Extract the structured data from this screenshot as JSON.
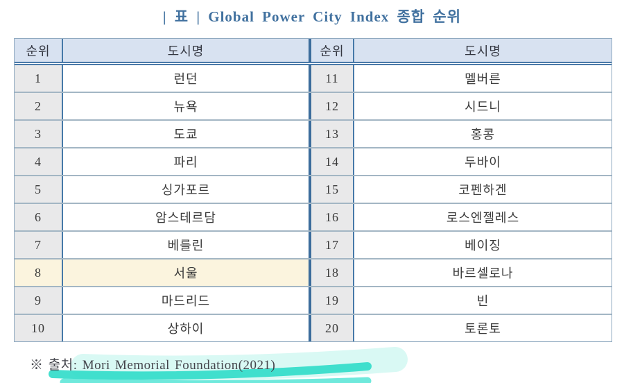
{
  "title": "| 표 | Global Power City Index 종합 순위",
  "table": {
    "header": {
      "rank": "순위",
      "city": "도시명"
    },
    "highlight_rank": "8",
    "left_rows": [
      {
        "rank": "1",
        "city": "런던"
      },
      {
        "rank": "2",
        "city": "뉴욕"
      },
      {
        "rank": "3",
        "city": "도쿄"
      },
      {
        "rank": "4",
        "city": "파리"
      },
      {
        "rank": "5",
        "city": "싱가포르"
      },
      {
        "rank": "6",
        "city": "암스테르담"
      },
      {
        "rank": "7",
        "city": "베를린"
      },
      {
        "rank": "8",
        "city": "서울"
      },
      {
        "rank": "9",
        "city": "마드리드"
      },
      {
        "rank": "10",
        "city": "상하이"
      }
    ],
    "right_rows": [
      {
        "rank": "11",
        "city": "멜버른"
      },
      {
        "rank": "12",
        "city": "시드니"
      },
      {
        "rank": "13",
        "city": "홍콩"
      },
      {
        "rank": "14",
        "city": "두바이"
      },
      {
        "rank": "15",
        "city": "코펜하겐"
      },
      {
        "rank": "16",
        "city": "로스엔젤레스"
      },
      {
        "rank": "17",
        "city": "베이징"
      },
      {
        "rank": "18",
        "city": "바르셀로나"
      },
      {
        "rank": "19",
        "city": "빈"
      },
      {
        "rank": "20",
        "city": "토론토"
      }
    ]
  },
  "footer": {
    "source": "※ 출처: Mori Memorial Foundation(2021)"
  },
  "colors": {
    "title_text": "#41719f",
    "border_blue": "#4679a8",
    "divider_blue": "#3c6d9c",
    "row_separator": "#a3b6c4",
    "header_bg": "#d8e2f1",
    "rank_col_bg": "#e9e9ea",
    "highlight_bg": "#fbf4de",
    "cell_text": "#3a3a3a",
    "marker_main": "#2fdcc9",
    "marker_halo": "#8cecdf"
  }
}
